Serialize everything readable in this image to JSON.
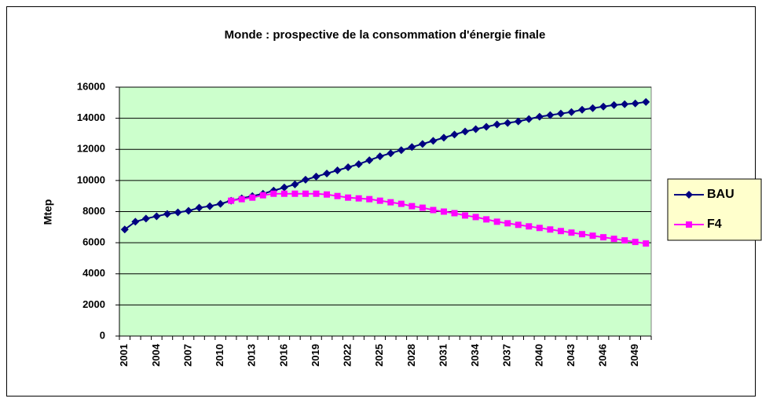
{
  "chart_data": {
    "type": "line",
    "title": "Monde : prospective de la consommation d'énergie finale",
    "y_label": "Mtep",
    "categories": [
      "2001",
      null,
      null,
      "2004",
      null,
      null,
      "2007",
      null,
      null,
      "2010",
      null,
      null,
      "2013",
      null,
      null,
      "2016",
      null,
      null,
      "2019",
      null,
      null,
      "2022",
      null,
      null,
      "2025",
      null,
      null,
      "2028",
      null,
      null,
      "2031",
      null,
      null,
      "2034",
      null,
      null,
      "2037",
      null,
      null,
      "2040",
      null,
      null,
      "2043",
      null,
      null,
      "2046",
      null,
      null,
      "2049",
      null
    ],
    "series": [
      {
        "name": "BAU",
        "color": "#000080",
        "marker": "diamond",
        "values": [
          6850,
          7350,
          7550,
          7700,
          7850,
          7950,
          8050,
          8250,
          8350,
          8500,
          8700,
          8850,
          9000,
          9150,
          9350,
          9550,
          9750,
          10050,
          10250,
          10450,
          10650,
          10850,
          11050,
          11300,
          11550,
          11750,
          11950,
          12150,
          12350,
          12550,
          12750,
          12950,
          13150,
          13300,
          13450,
          13600,
          13700,
          13800,
          13950,
          14100,
          14200,
          14300,
          14400,
          14550,
          14650,
          14750,
          14850,
          14900,
          14950,
          15050
        ]
      },
      {
        "name": "F4",
        "color": "#ff00ff",
        "marker": "square",
        "values": [
          null,
          null,
          null,
          null,
          null,
          null,
          null,
          null,
          null,
          null,
          8700,
          8800,
          8900,
          9050,
          9150,
          9150,
          9150,
          9150,
          9150,
          9100,
          9000,
          8900,
          8850,
          8800,
          8700,
          8600,
          8500,
          8350,
          8250,
          8100,
          8000,
          7900,
          7750,
          7650,
          7500,
          7350,
          7250,
          7150,
          7050,
          6950,
          6850,
          6750,
          6650,
          6550,
          6450,
          6350,
          6250,
          6150,
          6050,
          5950
        ]
      }
    ],
    "ylim": [
      0,
      16000
    ],
    "yticks": [
      0,
      2000,
      4000,
      6000,
      8000,
      10000,
      12000,
      14000,
      16000
    ],
    "grid": true,
    "plot_background": "#ccffcc",
    "legend_background": "#ffffcc",
    "legend": "right"
  }
}
